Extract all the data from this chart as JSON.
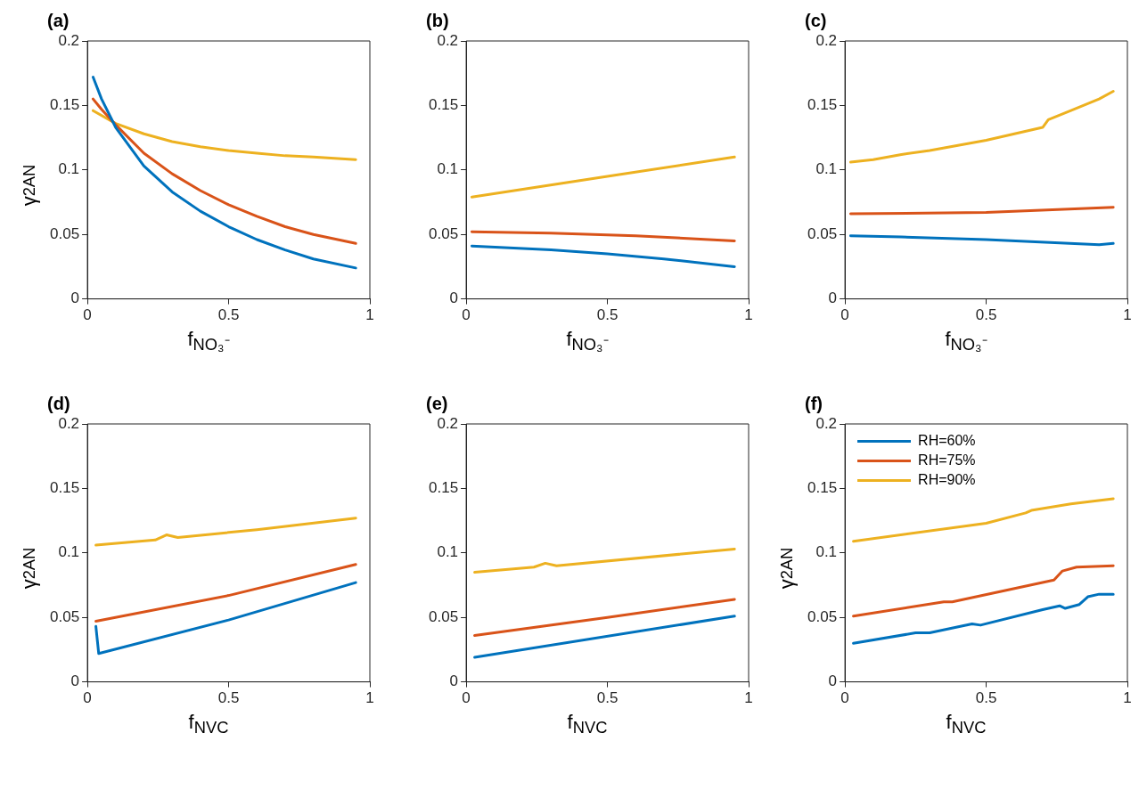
{
  "chart_data": [
    {
      "type": "line",
      "title": "(a)",
      "xlabel": "f$_{NO₃⁻}$",
      "ylabel": "γ$^{2}$$_{AN}$",
      "xlim": [
        0,
        1
      ],
      "xticks": [
        0,
        0.5,
        1
      ],
      "ylim": [
        0,
        0.2
      ],
      "yticks": [
        0,
        0.05,
        0.1,
        0.15,
        0.2
      ],
      "grid": false,
      "legend": false,
      "marker": "none",
      "line_style": "solid",
      "series": [
        {
          "color": "#0072bd",
          "x": [
            0.02,
            0.05,
            0.1,
            0.2,
            0.3,
            0.4,
            0.5,
            0.6,
            0.7,
            0.8,
            0.95
          ],
          "values": [
            0.172,
            0.155,
            0.133,
            0.103,
            0.083,
            0.068,
            0.056,
            0.046,
            0.038,
            0.031,
            0.024
          ]
        },
        {
          "color": "#d95319",
          "x": [
            0.02,
            0.05,
            0.1,
            0.2,
            0.3,
            0.4,
            0.5,
            0.6,
            0.7,
            0.8,
            0.95
          ],
          "values": [
            0.155,
            0.147,
            0.135,
            0.113,
            0.097,
            0.084,
            0.073,
            0.064,
            0.056,
            0.05,
            0.043
          ]
        },
        {
          "color": "#edb120",
          "x": [
            0.02,
            0.1,
            0.2,
            0.3,
            0.4,
            0.5,
            0.6,
            0.7,
            0.8,
            0.95
          ],
          "values": [
            0.146,
            0.136,
            0.128,
            0.122,
            0.118,
            0.115,
            0.113,
            0.111,
            0.11,
            0.108
          ]
        }
      ]
    },
    {
      "type": "line",
      "title": "(b)",
      "xlabel": "f$_{NO₃⁻}$",
      "xlim": [
        0,
        1
      ],
      "xticks": [
        0,
        0.5,
        1
      ],
      "ylim": [
        0,
        0.2
      ],
      "yticks": [
        0,
        0.05,
        0.1,
        0.15,
        0.2
      ],
      "grid": false,
      "legend": false,
      "marker": "none",
      "line_style": "solid",
      "series": [
        {
          "color": "#0072bd",
          "x": [
            0.02,
            0.3,
            0.5,
            0.7,
            0.95
          ],
          "values": [
            0.041,
            0.038,
            0.035,
            0.031,
            0.025
          ]
        },
        {
          "color": "#d95319",
          "x": [
            0.02,
            0.3,
            0.6,
            0.95
          ],
          "values": [
            0.052,
            0.051,
            0.049,
            0.045
          ]
        },
        {
          "color": "#edb120",
          "x": [
            0.02,
            0.5,
            0.95
          ],
          "values": [
            0.079,
            0.095,
            0.11
          ]
        }
      ]
    },
    {
      "type": "line",
      "title": "(c)",
      "xlabel": "f$_{NO₃⁻}$",
      "xlim": [
        0,
        1
      ],
      "xticks": [
        0,
        0.5,
        1
      ],
      "ylim": [
        0,
        0.2
      ],
      "yticks": [
        0,
        0.05,
        0.1,
        0.15,
        0.2
      ],
      "grid": false,
      "legend": false,
      "marker": "none",
      "line_style": "solid",
      "series": [
        {
          "color": "#0072bd",
          "x": [
            0.02,
            0.2,
            0.5,
            0.9,
            0.95
          ],
          "values": [
            0.049,
            0.048,
            0.046,
            0.042,
            0.043
          ]
        },
        {
          "color": "#d95319",
          "x": [
            0.02,
            0.5,
            0.95
          ],
          "values": [
            0.066,
            0.067,
            0.071
          ]
        },
        {
          "color": "#edb120",
          "x": [
            0.02,
            0.1,
            0.2,
            0.3,
            0.4,
            0.5,
            0.6,
            0.7,
            0.72,
            0.8,
            0.9,
            0.95
          ],
          "values": [
            0.106,
            0.108,
            0.112,
            0.115,
            0.119,
            0.123,
            0.128,
            0.133,
            0.139,
            0.146,
            0.155,
            0.161
          ]
        }
      ]
    },
    {
      "type": "line",
      "title": "(d)",
      "xlabel": "f$_{NVC}$",
      "ylabel": "γ$^{2}$$_{AN}$",
      "xlim": [
        0,
        1
      ],
      "xticks": [
        0,
        0.5,
        1
      ],
      "ylim": [
        0,
        0.2
      ],
      "yticks": [
        0,
        0.05,
        0.1,
        0.15,
        0.2
      ],
      "grid": false,
      "legend": false,
      "marker": "none",
      "line_style": "solid",
      "series": [
        {
          "color": "#0072bd",
          "x": [
            0.03,
            0.04,
            0.5,
            0.95
          ],
          "values": [
            0.043,
            0.022,
            0.048,
            0.077
          ]
        },
        {
          "color": "#d95319",
          "x": [
            0.03,
            0.5,
            0.95
          ],
          "values": [
            0.047,
            0.067,
            0.091
          ]
        },
        {
          "color": "#edb120",
          "x": [
            0.03,
            0.24,
            0.28,
            0.32,
            0.6,
            0.95
          ],
          "values": [
            0.106,
            0.11,
            0.114,
            0.112,
            0.118,
            0.127
          ]
        }
      ]
    },
    {
      "type": "line",
      "title": "(e)",
      "xlabel": "f$_{NVC}$",
      "xlim": [
        0,
        1
      ],
      "xticks": [
        0,
        0.5,
        1
      ],
      "ylim": [
        0,
        0.2
      ],
      "yticks": [
        0,
        0.05,
        0.1,
        0.15,
        0.2
      ],
      "grid": false,
      "legend": false,
      "marker": "none",
      "line_style": "solid",
      "series": [
        {
          "color": "#0072bd",
          "x": [
            0.03,
            0.95
          ],
          "values": [
            0.019,
            0.051
          ]
        },
        {
          "color": "#d95319",
          "x": [
            0.03,
            0.5,
            0.95
          ],
          "values": [
            0.036,
            0.05,
            0.064
          ]
        },
        {
          "color": "#edb120",
          "x": [
            0.03,
            0.24,
            0.28,
            0.32,
            0.95
          ],
          "values": [
            0.085,
            0.089,
            0.092,
            0.09,
            0.103
          ]
        }
      ]
    },
    {
      "type": "line",
      "title": "(f)",
      "xlabel": "f$_{NVC}$",
      "ylabel": "γ$^{2}$$_{AN}$",
      "xlim": [
        0,
        1
      ],
      "xticks": [
        0,
        0.5,
        1
      ],
      "ylim": [
        0,
        0.2
      ],
      "yticks": [
        0,
        0.05,
        0.1,
        0.15,
        0.2
      ],
      "grid": false,
      "legend": "top left",
      "marker": "none",
      "line_style": "solid",
      "series": [
        {
          "name": "RH=60%",
          "color": "#0072bd",
          "x": [
            0.03,
            0.25,
            0.3,
            0.45,
            0.48,
            0.7,
            0.76,
            0.78,
            0.83,
            0.86,
            0.9,
            0.95
          ],
          "values": [
            0.03,
            0.038,
            0.038,
            0.045,
            0.044,
            0.056,
            0.059,
            0.057,
            0.06,
            0.066,
            0.068,
            0.068
          ]
        },
        {
          "name": "RH=75%",
          "color": "#d95319",
          "x": [
            0.03,
            0.35,
            0.38,
            0.74,
            0.77,
            0.82,
            0.95
          ],
          "values": [
            0.051,
            0.062,
            0.062,
            0.079,
            0.086,
            0.089,
            0.09
          ]
        },
        {
          "name": "RH=90%",
          "color": "#edb120",
          "x": [
            0.03,
            0.5,
            0.64,
            0.66,
            0.8,
            0.95
          ],
          "values": [
            0.109,
            0.123,
            0.131,
            0.133,
            0.138,
            0.142
          ]
        }
      ]
    }
  ]
}
